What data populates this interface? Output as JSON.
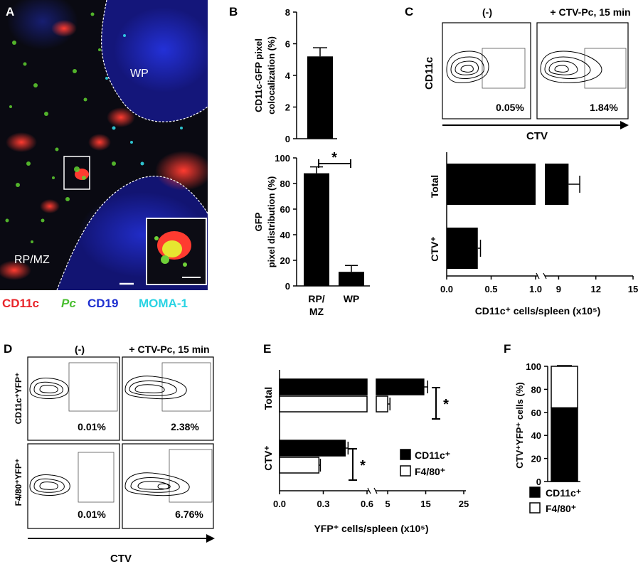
{
  "panels": {
    "A": {
      "label": "A",
      "region_wp": "WP",
      "region_rpmz": "RP/MZ",
      "legend": [
        {
          "text": "CD11c",
          "color": "#e8242a",
          "italic": false
        },
        {
          "text": "Pc",
          "color": "#4bbf32",
          "italic": true
        },
        {
          "text": "CD19",
          "color": "#1e2fd0",
          "italic": false
        },
        {
          "text": "MOMA-1",
          "color": "#29d3e3",
          "italic": false
        }
      ]
    },
    "B": {
      "label": "B"
    },
    "C": {
      "label": "C",
      "flow_titles": [
        "(-)",
        "+ CTV-Pc, 15 min"
      ],
      "flow_ylabel": "CD11c",
      "flow_xlabel": "CTV",
      "gate_values": [
        "0.05%",
        "1.84%"
      ]
    },
    "D": {
      "label": "D",
      "flow_titles": [
        "(-)",
        "+ CTV-Pc, 15 min"
      ],
      "row_labels": [
        "CD11c⁺YFP⁺",
        "F4/80⁺YFP⁺"
      ],
      "flow_xlabel": "CTV",
      "gate_values": [
        "0.01%",
        "2.38%",
        "0.01%",
        "6.76%"
      ]
    },
    "E": {
      "label": "E"
    },
    "F": {
      "label": "F"
    }
  },
  "chart_data": [
    {
      "id": "B-top",
      "type": "bar",
      "categories": [
        ""
      ],
      "values": [
        5.2
      ],
      "errors": [
        0.55
      ],
      "ylabel": "CD11c-GFP pixel colocalization (%)",
      "ylim": [
        0,
        8
      ],
      "yticks": [
        "0",
        "2",
        "4",
        "6",
        "8"
      ]
    },
    {
      "id": "B-bottom",
      "type": "bar",
      "categories": [
        "RP/MZ",
        "WP"
      ],
      "values": [
        88,
        11
      ],
      "errors": [
        5,
        5
      ],
      "ylabel": "GFP pixel distribution (%)",
      "ylim": [
        0,
        100
      ],
      "yticks": [
        "0",
        "20",
        "40",
        "60",
        "80",
        "100"
      ],
      "significance": "*"
    },
    {
      "id": "C-bottom",
      "type": "bar",
      "orientation": "horizontal",
      "categories": [
        "Total",
        "CTV⁺"
      ],
      "values": [
        9.8,
        0.35
      ],
      "errors": [
        0.9,
        0.03
      ],
      "xlabel": "CD11c⁺ cells/spleen (x10⁵)",
      "xticks": [
        "0.0",
        "0.5",
        "1.0",
        "9",
        "12",
        "15"
      ],
      "axis_break": [
        1.0,
        8
      ]
    },
    {
      "id": "E",
      "type": "bar",
      "orientation": "horizontal",
      "categories": [
        "Total",
        "CTV⁺"
      ],
      "series": [
        {
          "name": "CD11c⁺",
          "values": [
            14.5,
            0.45
          ],
          "errors": [
            1.0,
            0.02
          ],
          "fill": "#000000"
        },
        {
          "name": "F4/80⁺",
          "values": [
            5.0,
            0.27
          ],
          "errors": [
            0.6,
            0.01
          ],
          "fill": "#ffffff"
        }
      ],
      "xlabel": "YFP⁺ cells/spleen (x10⁵)",
      "xticks": [
        "0.0",
        "0.3",
        "0.6",
        "5",
        "15",
        "25"
      ],
      "axis_break": [
        0.6,
        5
      ],
      "significance": [
        "*",
        "*"
      ]
    },
    {
      "id": "F",
      "type": "bar",
      "stacked": true,
      "categories": [
        ""
      ],
      "series": [
        {
          "name": "CD11c⁺",
          "values": [
            64
          ],
          "fill": "#000000"
        },
        {
          "name": "F4/80⁺",
          "values": [
            36
          ],
          "fill": "#ffffff"
        }
      ],
      "ylabel": "CTV⁺YFP⁺ cells (%)",
      "ylim": [
        0,
        100
      ],
      "yticks": [
        "0",
        "20",
        "40",
        "60",
        "80",
        "100"
      ]
    }
  ]
}
